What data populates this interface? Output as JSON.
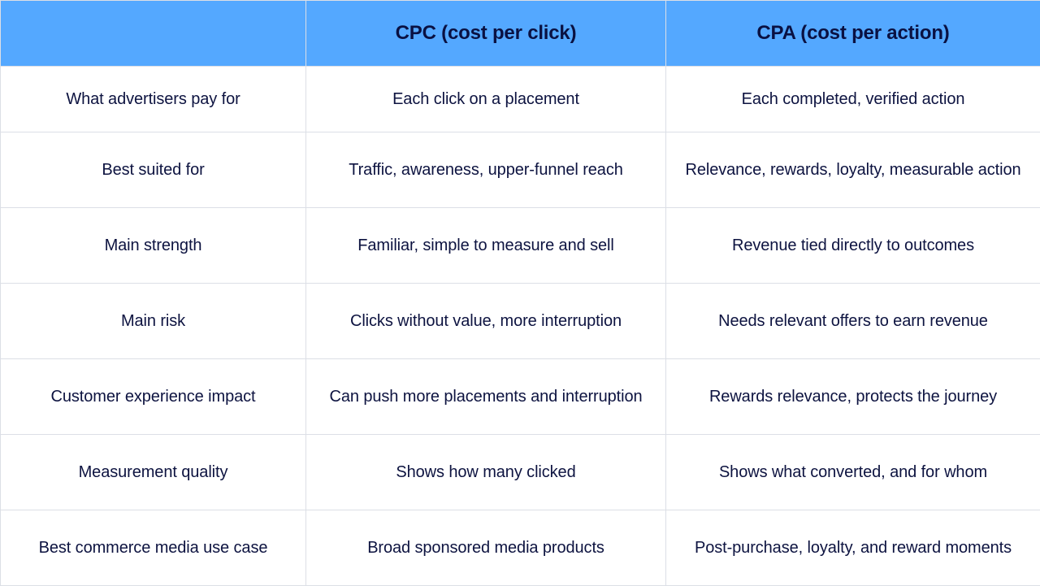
{
  "header": {
    "col0": "",
    "col1": "CPC (cost per click)",
    "col2": "CPA (cost per action)"
  },
  "rows": [
    {
      "label": "What advertisers pay for",
      "cpc": "Each click on a placement",
      "cpa": "Each completed, verified action"
    },
    {
      "label": "Best suited for",
      "cpc": "Traffic, awareness, upper-funnel reach",
      "cpa": "Relevance, rewards, loyalty, measurable action"
    },
    {
      "label": "Main strength",
      "cpc": "Familiar, simple to measure and sell",
      "cpa": "Revenue tied directly to outcomes"
    },
    {
      "label": "Main risk",
      "cpc": "Clicks without value, more interruption",
      "cpa": "Needs relevant offers to earn revenue"
    },
    {
      "label": "Customer experience impact",
      "cpc": "Can push more placements and interruption",
      "cpa": "Rewards relevance, protects the journey"
    },
    {
      "label": "Measurement quality",
      "cpc": "Shows how many clicked",
      "cpa": "Shows what converted, and for whom"
    },
    {
      "label": "Best commerce media use case",
      "cpc": "Broad sponsored media products",
      "cpa": "Post-purchase, loyalty, and reward moments"
    }
  ],
  "colors": {
    "header_bg": "#54a8ff",
    "text": "#0d1340",
    "border": "#dcdfe6"
  }
}
